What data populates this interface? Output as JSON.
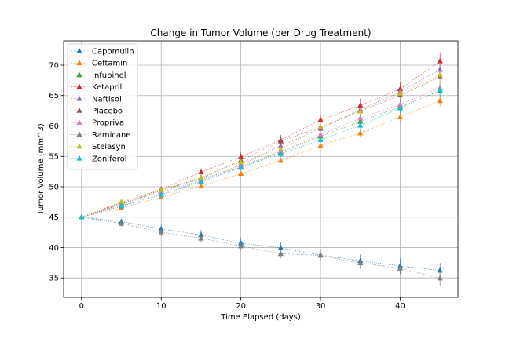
{
  "chart_data": {
    "type": "line",
    "title": "Change in Tumor Volume (per Drug Treatment)",
    "xlabel": "Time Elapsed (days)",
    "ylabel": "Tumor Volume (mm^3)",
    "xlim": [
      -2.25,
      47.25
    ],
    "ylim": [
      31.8,
      74.0
    ],
    "xticks": [
      0,
      10,
      20,
      30,
      40
    ],
    "yticks": [
      35,
      40,
      45,
      50,
      55,
      60,
      65,
      70
    ],
    "grid": true,
    "legend_position": "upper-left",
    "marker": "triangle-up",
    "line_style": "dotted",
    "x": [
      0,
      5,
      10,
      15,
      20,
      25,
      30,
      35,
      40,
      45
    ],
    "series": [
      {
        "name": "Capomulin",
        "color": "#1f77b4",
        "values": [
          45.0,
          44.27,
          43.08,
          42.06,
          40.72,
          39.94,
          38.77,
          37.82,
          36.96,
          36.24
        ],
        "err": [
          0,
          0.45,
          0.7,
          0.84,
          0.91,
          0.89,
          0.93,
          1.05,
          1.22,
          1.22
        ]
      },
      {
        "name": "Ceftamin",
        "color": "#ff7f0e",
        "values": [
          45.0,
          46.5,
          48.29,
          50.09,
          52.16,
          54.29,
          56.77,
          58.83,
          61.47,
          64.13
        ],
        "err": [
          0,
          0.16,
          0.24,
          0.33,
          0.36,
          0.44,
          0.49,
          0.69,
          0.71,
          0.88
        ]
      },
      {
        "name": "Infubinol",
        "color": "#2ca02c",
        "values": [
          45.0,
          47.06,
          49.4,
          51.3,
          53.2,
          55.72,
          58.3,
          60.74,
          63.16,
          65.76
        ],
        "err": [
          0,
          0.24,
          0.28,
          0.36,
          0.48,
          0.55,
          0.63,
          0.98,
          1.06,
          1.14
        ]
      },
      {
        "name": "Ketapril",
        "color": "#d62728",
        "values": [
          45.0,
          47.39,
          49.58,
          52.4,
          54.92,
          57.68,
          60.99,
          63.37,
          66.07,
          70.66
        ],
        "err": [
          0,
          0.26,
          0.36,
          0.58,
          0.73,
          0.76,
          0.93,
          1.13,
          1.16,
          1.45
        ]
      },
      {
        "name": "Naftisol",
        "color": "#9467bd",
        "values": [
          45.0,
          46.8,
          48.69,
          50.93,
          53.64,
          56.73,
          59.56,
          62.69,
          65.6,
          69.27
        ],
        "err": [
          0,
          0.2,
          0.32,
          0.44,
          0.59,
          0.81,
          0.98,
          1.01,
          1.02,
          1.19
        ]
      },
      {
        "name": "Placebo",
        "color": "#8c564b",
        "values": [
          45.0,
          47.13,
          49.42,
          51.36,
          54.36,
          57.48,
          59.81,
          62.42,
          65.05,
          68.08
        ],
        "err": [
          0,
          0.22,
          0.4,
          0.61,
          0.84,
          1.03,
          1.22,
          1.29,
          1.37,
          1.35
        ]
      },
      {
        "name": "Propriva",
        "color": "#e377c2",
        "values": [
          45.0,
          47.25,
          49.1,
          51.07,
          53.35,
          55.86,
          58.57,
          61.26,
          63.53,
          66.26
        ],
        "err": [
          0,
          0.23,
          0.38,
          0.47,
          0.56,
          0.58,
          0.8,
          0.88,
          1.03,
          1.0
        ]
      },
      {
        "name": "Ramicane",
        "color": "#7f7f7f",
        "values": [
          45.0,
          43.94,
          42.53,
          41.5,
          40.24,
          38.97,
          38.7,
          37.45,
          36.57,
          34.96
        ],
        "err": [
          0,
          0.48,
          0.72,
          0.77,
          0.79,
          0.75,
          0.86,
          0.97,
          1.01,
          1.22
        ]
      },
      {
        "name": "Stelasyn",
        "color": "#bcbd22",
        "values": [
          45.0,
          47.53,
          49.46,
          51.53,
          54.07,
          56.17,
          59.83,
          62.44,
          65.36,
          68.44
        ],
        "err": [
          0,
          0.24,
          0.43,
          0.49,
          0.62,
          0.74,
          0.9,
          0.98,
          1.01,
          1.05
        ]
      },
      {
        "name": "Zoniferol",
        "color": "#17becf",
        "values": [
          45.0,
          46.85,
          48.69,
          50.78,
          53.17,
          55.43,
          57.71,
          60.09,
          62.92,
          65.96
        ],
        "err": [
          0,
          0.19,
          0.26,
          0.37,
          0.53,
          0.6,
          0.8,
          0.88,
          1.0,
          1.0
        ]
      }
    ]
  }
}
